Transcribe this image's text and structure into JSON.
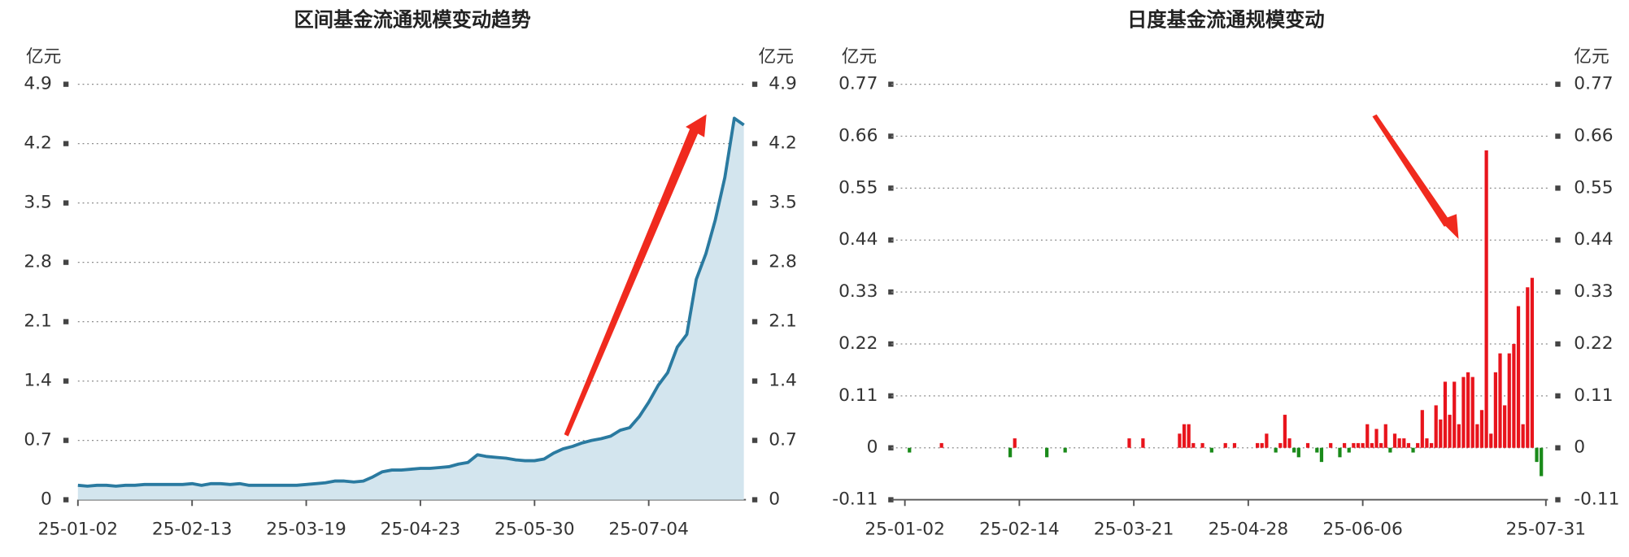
{
  "chart_data": [
    {
      "type": "area",
      "title": "区间基金流通规模变动趋势",
      "y_unit": "亿元",
      "categories": [
        "25-01-02",
        null,
        null,
        null,
        null,
        null,
        null,
        null,
        null,
        null,
        null,
        null,
        "25-02-13",
        null,
        null,
        null,
        null,
        null,
        null,
        null,
        null,
        null,
        null,
        null,
        "25-03-19",
        null,
        null,
        null,
        null,
        null,
        null,
        null,
        null,
        null,
        null,
        null,
        "25-04-23",
        null,
        null,
        null,
        null,
        null,
        null,
        null,
        null,
        null,
        null,
        null,
        "25-05-30",
        null,
        null,
        null,
        null,
        null,
        null,
        null,
        null,
        null,
        null,
        null,
        "25-07-04",
        null,
        null,
        null,
        null,
        null,
        null,
        null,
        null,
        null,
        null
      ],
      "values": [
        0.17,
        0.16,
        0.17,
        0.17,
        0.16,
        0.17,
        0.17,
        0.18,
        0.18,
        0.18,
        0.18,
        0.18,
        0.19,
        0.17,
        0.19,
        0.19,
        0.18,
        0.19,
        0.17,
        0.17,
        0.17,
        0.17,
        0.17,
        0.17,
        0.18,
        0.19,
        0.2,
        0.22,
        0.22,
        0.21,
        0.22,
        0.27,
        0.33,
        0.35,
        0.35,
        0.36,
        0.37,
        0.37,
        0.38,
        0.39,
        0.42,
        0.44,
        0.53,
        0.51,
        0.5,
        0.49,
        0.47,
        0.46,
        0.46,
        0.48,
        0.55,
        0.6,
        0.63,
        0.67,
        0.7,
        0.72,
        0.75,
        0.82,
        0.85,
        0.98,
        1.15,
        1.35,
        1.5,
        1.8,
        1.95,
        2.6,
        2.9,
        3.3,
        3.8,
        4.5,
        4.42
      ],
      "color": "#2a7aa0",
      "fill_color": "#d3e5ee",
      "ylim": [
        0,
        4.9
      ],
      "yticks": [
        0,
        0.7,
        1.4,
        2.1,
        2.8,
        3.5,
        4.2,
        4.9
      ],
      "grid": true
    },
    {
      "type": "bar",
      "title": "日度基金流通规模变动",
      "y_unit": "亿元",
      "categories": [
        "25-01-02",
        null,
        null,
        null,
        null,
        null,
        null,
        null,
        null,
        null,
        null,
        null,
        null,
        null,
        null,
        null,
        null,
        null,
        null,
        null,
        null,
        null,
        null,
        null,
        null,
        "25-02-14",
        null,
        null,
        null,
        null,
        null,
        null,
        null,
        null,
        null,
        null,
        null,
        null,
        null,
        null,
        null,
        null,
        null,
        null,
        null,
        null,
        null,
        null,
        null,
        null,
        "25-03-21",
        null,
        null,
        null,
        null,
        null,
        null,
        null,
        null,
        null,
        null,
        null,
        null,
        null,
        null,
        null,
        null,
        null,
        null,
        null,
        null,
        null,
        null,
        null,
        null,
        "25-04-28",
        null,
        null,
        null,
        null,
        null,
        null,
        null,
        null,
        null,
        null,
        null,
        null,
        null,
        null,
        null,
        null,
        null,
        null,
        null,
        null,
        null,
        null,
        null,
        null,
        "25-06-06",
        null,
        null,
        null,
        null,
        null,
        null,
        null,
        null,
        null,
        null,
        null,
        null,
        null,
        null,
        null,
        null,
        null,
        null,
        null,
        null,
        null,
        null,
        null,
        null,
        null,
        null,
        null,
        null,
        null,
        null,
        null,
        null,
        null,
        null,
        null,
        null,
        null,
        null,
        null,
        "25-07-31"
      ],
      "values": [
        0,
        -0.01,
        0,
        0,
        0,
        0,
        0,
        0,
        0.01,
        0,
        0,
        0,
        0,
        0,
        0,
        0,
        0,
        0,
        0,
        0,
        0,
        0,
        0,
        -0.02,
        0.02,
        0,
        0,
        0,
        0,
        0,
        0,
        -0.02,
        0,
        0,
        0,
        -0.01,
        0,
        0,
        0,
        0,
        0,
        0,
        0,
        0,
        0,
        0,
        0,
        0,
        0,
        0.02,
        0,
        0,
        0.02,
        0,
        0,
        0,
        0,
        0,
        0,
        0,
        0.03,
        0.05,
        0.05,
        0.01,
        0,
        0.01,
        0,
        -0.01,
        0,
        0,
        0.01,
        0,
        0.01,
        0,
        0,
        0,
        0,
        0.01,
        0.01,
        0.03,
        0,
        -0.01,
        0.01,
        0.07,
        0.02,
        -0.01,
        -0.02,
        0,
        0.01,
        0,
        -0.01,
        -0.03,
        0,
        0.01,
        0,
        -0.02,
        0.01,
        -0.01,
        0.01,
        0.01,
        0.01,
        0.05,
        0.01,
        0.04,
        0.01,
        0.05,
        -0.01,
        0.03,
        0.02,
        0.02,
        0.01,
        -0.01,
        0.01,
        0.08,
        0.02,
        0.01,
        0.09,
        0.06,
        0.14,
        0.07,
        0.14,
        0.05,
        0.15,
        0.16,
        0.15,
        0.05,
        0.08,
        0.63,
        0.03,
        0.16,
        0.2,
        0.09,
        0.2,
        0.22,
        0.3,
        0.05,
        0.34,
        0.36,
        -0.03,
        -0.06,
        0
      ],
      "positive_color": "#e8141c",
      "negative_color": "#1a8a1a",
      "ylim": [
        -0.11,
        0.77
      ],
      "yticks": [
        -0.11,
        0,
        0.11,
        0.22,
        0.33,
        0.44,
        0.55,
        0.66,
        0.77
      ],
      "grid": true
    }
  ]
}
